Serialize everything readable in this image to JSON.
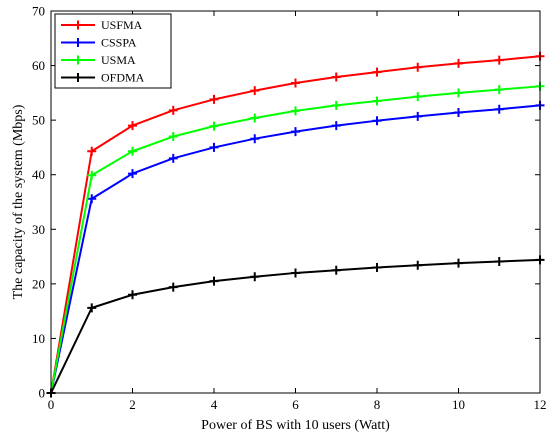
{
  "chart_data": {
    "type": "line",
    "title": "",
    "xlabel": "Power of BS with 10 users (Watt)",
    "ylabel": "The capacity of the system (Mbps)",
    "xlim": [
      0,
      12
    ],
    "ylim": [
      0,
      70
    ],
    "xticks": [
      0,
      2,
      4,
      6,
      8,
      10,
      12
    ],
    "yticks": [
      0,
      10,
      20,
      30,
      40,
      50,
      60,
      70
    ],
    "grid": false,
    "legend_position": "top-left",
    "marker": "plus",
    "x": [
      0,
      1,
      2,
      3,
      4,
      5,
      6,
      7,
      8,
      9,
      10,
      11,
      12
    ],
    "series": [
      {
        "name": "USFMA",
        "color": "#ff0000",
        "values": [
          0,
          44.3,
          49.0,
          51.8,
          53.8,
          55.4,
          56.8,
          57.9,
          58.8,
          59.7,
          60.4,
          61.0,
          61.7
        ]
      },
      {
        "name": "CSSPA",
        "color": "#0000ff",
        "values": [
          0,
          35.6,
          40.2,
          43.0,
          45.0,
          46.6,
          47.9,
          49.0,
          49.9,
          50.7,
          51.4,
          52.0,
          52.7
        ]
      },
      {
        "name": "USMA",
        "color": "#00ff00",
        "values": [
          0,
          39.9,
          44.3,
          47.0,
          48.9,
          50.4,
          51.7,
          52.7,
          53.5,
          54.3,
          55.0,
          55.6,
          56.2
        ]
      },
      {
        "name": "OFDMA",
        "color": "#000000",
        "values": [
          0,
          15.6,
          18.0,
          19.4,
          20.5,
          21.3,
          22.0,
          22.5,
          23.0,
          23.4,
          23.8,
          24.1,
          24.4
        ]
      }
    ]
  }
}
